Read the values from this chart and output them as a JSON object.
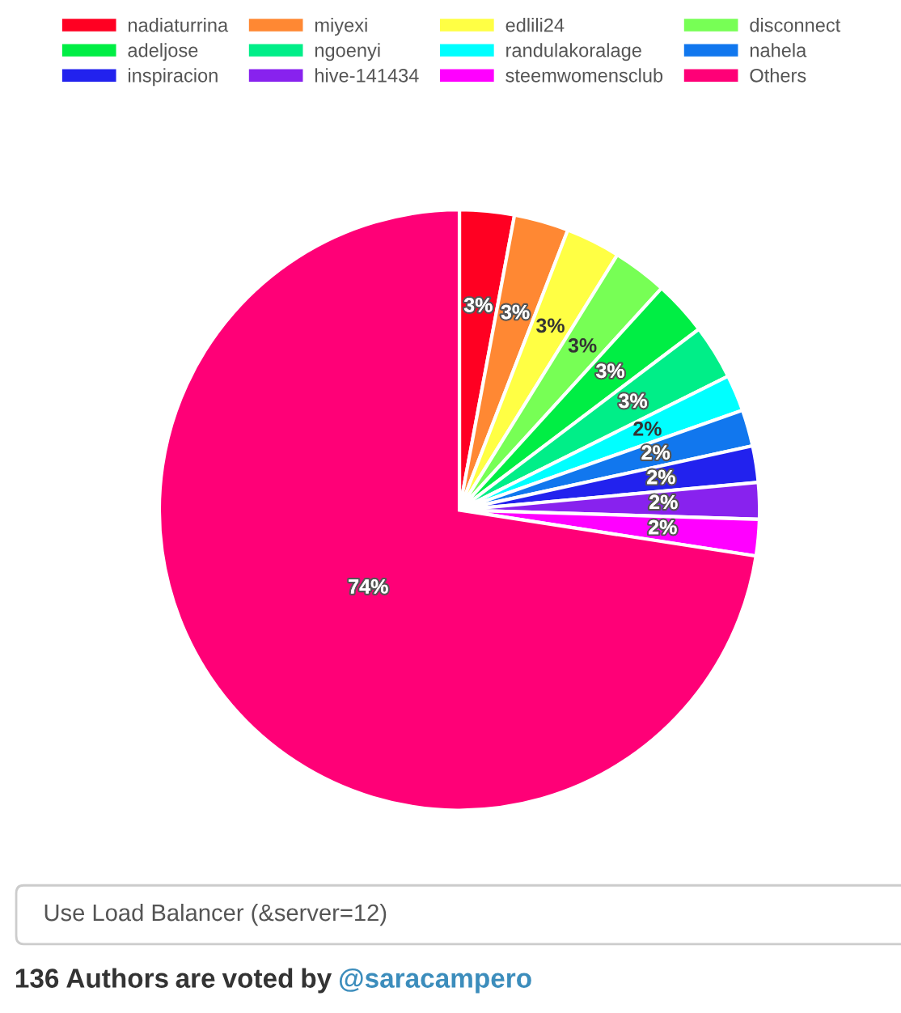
{
  "chart_data": {
    "type": "pie",
    "categories": [
      "nadiaturrina",
      "miyexi",
      "edlili24",
      "disconnect",
      "adeljose",
      "ngoenyi",
      "randulakoralage",
      "nahela",
      "inspiracion",
      "hive-141434",
      "steemwomensclub",
      "Others"
    ],
    "values": [
      3,
      3,
      3,
      3,
      3,
      3,
      2,
      2,
      2,
      2,
      2,
      74
    ],
    "colors": [
      "#ff0022",
      "#ff8833",
      "#ffff44",
      "#77ff55",
      "#00ee44",
      "#00ee88",
      "#00ffff",
      "#1177ee",
      "#2222ee",
      "#8822ee",
      "#ff00ff",
      "#ff0077"
    ],
    "value_labels": [
      "3%",
      "3%",
      "3%",
      "3%",
      "3%",
      "3%",
      "2%",
      "2%",
      "2%",
      "2%",
      "2%",
      "74%"
    ],
    "legend": "top",
    "annotations": [
      "Use Load Balancer (&server=12)",
      "136 Authors are voted by @saracampero"
    ]
  }
}
